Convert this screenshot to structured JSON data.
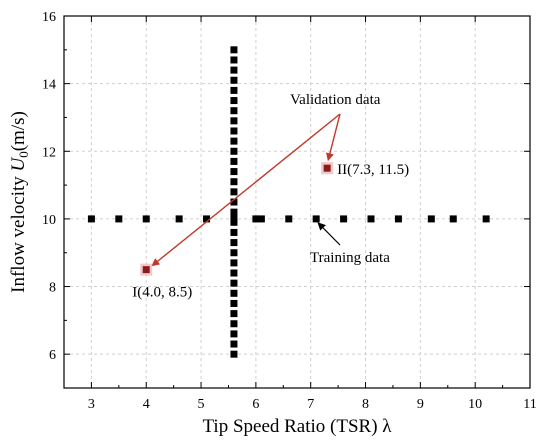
{
  "chart_data": {
    "type": "scatter",
    "title": "",
    "xlabel": "Tip Speed Ratio (TSR) λ",
    "ylabel_parts": {
      "main": "Inflow velocity ",
      "var": "U",
      "sub": "0",
      "unit": "(m/s)"
    },
    "xlim": [
      2.5,
      11
    ],
    "ylim": [
      5,
      16
    ],
    "x_ticks": [
      "3",
      "4",
      "5",
      "6",
      "7",
      "8",
      "9",
      "10",
      "11"
    ],
    "y_ticks": [
      "6",
      "8",
      "10",
      "12",
      "14",
      "16"
    ],
    "grid": true,
    "colors": {
      "training": "#000000",
      "validation": "#8b1c1c",
      "validation_fill": "#f2c8cc",
      "arrow": "#c0392b"
    },
    "training": {
      "horizontal": {
        "y": 10,
        "x": [
          3.0,
          3.5,
          4.0,
          4.6,
          5.1,
          5.6,
          6.0,
          6.1,
          6.6,
          7.1,
          7.6,
          8.1,
          8.6,
          9.2,
          9.6,
          10.2
        ]
      },
      "vertical": {
        "x": 5.6,
        "y": [
          6.0,
          6.3,
          6.6,
          6.9,
          7.2,
          7.5,
          7.8,
          8.1,
          8.4,
          8.7,
          9.0,
          9.3,
          9.6,
          9.9,
          10.2,
          10.5,
          10.8,
          11.1,
          11.4,
          11.7,
          12.0,
          12.3,
          12.6,
          12.9,
          13.2,
          13.5,
          13.8,
          14.1,
          14.4,
          14.7,
          15.0
        ]
      }
    },
    "validation": [
      {
        "label": "I(4.0, 8.5)",
        "x": 4.0,
        "y": 8.5
      },
      {
        "label": "II(7.3, 11.5)",
        "x": 7.3,
        "y": 11.5
      }
    ],
    "annotations": {
      "validation_label": "Validation data",
      "training_label": "Training data"
    }
  }
}
